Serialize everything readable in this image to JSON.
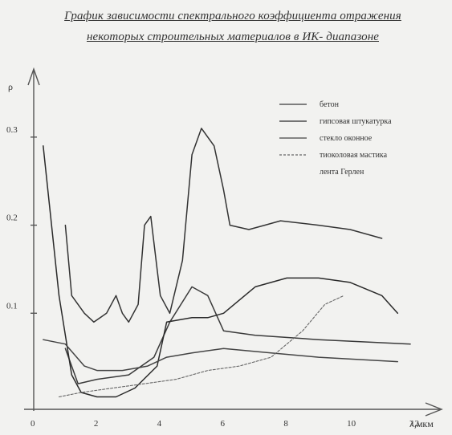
{
  "title_line1": "График зависимости спектрального коэффициента отражения",
  "title_line2": "некоторых строительных материалов в ИК- диапазоне",
  "chart_data": {
    "type": "line",
    "xlabel": "λ,мкм",
    "ylabel": "ρ",
    "xlim": [
      0,
      12
    ],
    "ylim": [
      0,
      0.36
    ],
    "x_ticks": [
      0,
      2,
      4,
      6,
      8,
      10,
      12
    ],
    "x_tick_labels": [
      "0",
      "2",
      "4",
      "6",
      "8",
      "10",
      "12"
    ],
    "y_ticks": [
      0.1,
      0.2,
      0.3
    ],
    "y_tick_labels": [
      "0.1",
      "0.2",
      "0.3"
    ],
    "grid": false,
    "legend_position": "top-right",
    "series": [
      {
        "name": "бетон",
        "color": "#3a3a3a",
        "points": [
          [
            1.0,
            0.06
          ],
          [
            1.4,
            0.02
          ],
          [
            2.0,
            0.025
          ],
          [
            3.0,
            0.03
          ],
          [
            3.8,
            0.05
          ],
          [
            4.3,
            0.09
          ],
          [
            5.0,
            0.13
          ],
          [
            5.5,
            0.12
          ],
          [
            6.0,
            0.08
          ],
          [
            7.0,
            0.075
          ],
          [
            9.0,
            0.07
          ],
          [
            11.9,
            0.065
          ]
        ]
      },
      {
        "name": "гипсовая штукатурка",
        "color": "#2a2a2a",
        "points": [
          [
            0.3,
            0.29
          ],
          [
            0.8,
            0.12
          ],
          [
            1.2,
            0.03
          ],
          [
            1.5,
            0.01
          ],
          [
            2.0,
            0.005
          ],
          [
            2.6,
            0.005
          ],
          [
            3.2,
            0.015
          ],
          [
            3.9,
            0.04
          ],
          [
            4.2,
            0.09
          ],
          [
            5.0,
            0.095
          ],
          [
            5.5,
            0.095
          ],
          [
            6.0,
            0.1
          ],
          [
            7.0,
            0.13
          ],
          [
            8.0,
            0.14
          ],
          [
            9.0,
            0.14
          ],
          [
            10.0,
            0.135
          ],
          [
            11.0,
            0.12
          ],
          [
            11.5,
            0.1
          ]
        ]
      },
      {
        "name": "стекло оконное",
        "color": "#444444",
        "points": [
          [
            0.3,
            0.07
          ],
          [
            1.0,
            0.065
          ],
          [
            1.6,
            0.04
          ],
          [
            2.0,
            0.035
          ],
          [
            2.8,
            0.035
          ],
          [
            3.6,
            0.04
          ],
          [
            4.2,
            0.05
          ],
          [
            5.0,
            0.055
          ],
          [
            6.0,
            0.06
          ],
          [
            7.5,
            0.055
          ],
          [
            9.0,
            0.05
          ],
          [
            11.5,
            0.045
          ]
        ]
      },
      {
        "name": "тиоколовая мастика",
        "color": "#666666",
        "points": [
          [
            0.8,
            0.005
          ],
          [
            1.5,
            0.01
          ],
          [
            2.5,
            0.015
          ],
          [
            3.5,
            0.02
          ],
          [
            4.5,
            0.025
          ],
          [
            5.5,
            0.035
          ],
          [
            6.5,
            0.04
          ],
          [
            7.5,
            0.05
          ],
          [
            8.5,
            0.08
          ],
          [
            9.2,
            0.11
          ],
          [
            9.8,
            0.12
          ]
        ]
      },
      {
        "name": "лента Герлен",
        "color": "#333333",
        "points": [
          [
            1.0,
            0.2
          ],
          [
            1.2,
            0.12
          ],
          [
            1.6,
            0.1
          ],
          [
            1.9,
            0.09
          ],
          [
            2.3,
            0.1
          ],
          [
            2.6,
            0.12
          ],
          [
            2.8,
            0.1
          ],
          [
            3.0,
            0.09
          ],
          [
            3.3,
            0.11
          ],
          [
            3.5,
            0.2
          ],
          [
            3.7,
            0.21
          ],
          [
            3.9,
            0.15
          ],
          [
            4.0,
            0.12
          ],
          [
            4.3,
            0.1
          ],
          [
            4.7,
            0.16
          ],
          [
            5.0,
            0.28
          ],
          [
            5.3,
            0.31
          ],
          [
            5.7,
            0.29
          ],
          [
            6.0,
            0.24
          ],
          [
            6.2,
            0.2
          ],
          [
            6.8,
            0.195
          ],
          [
            7.3,
            0.2
          ],
          [
            7.8,
            0.205
          ],
          [
            9.0,
            0.2
          ],
          [
            10.0,
            0.195
          ],
          [
            11.0,
            0.185
          ]
        ]
      }
    ]
  }
}
